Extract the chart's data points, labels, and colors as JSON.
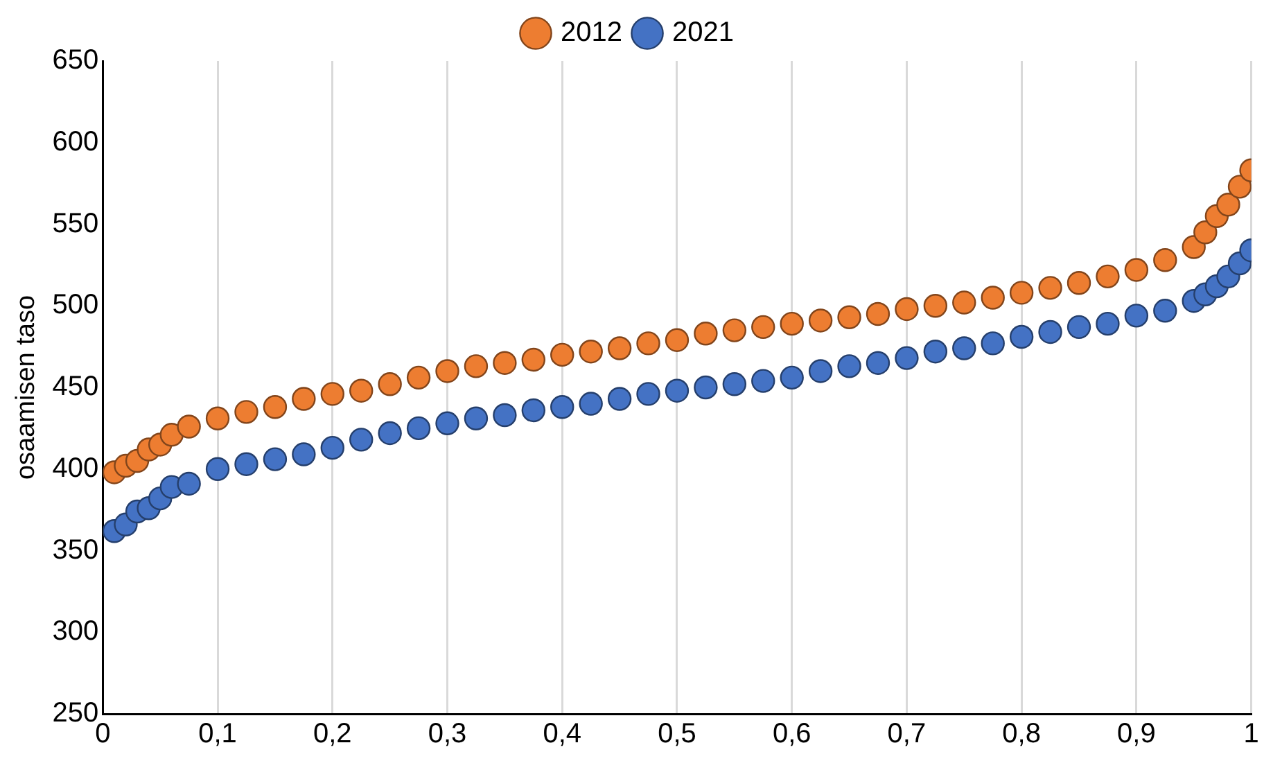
{
  "chart_data": {
    "type": "scatter",
    "ylabel": "osaamisen taso",
    "x": [
      0.01,
      0.02,
      0.03,
      0.04,
      0.05,
      0.06,
      0.075,
      0.1,
      0.125,
      0.15,
      0.175,
      0.2,
      0.225,
      0.25,
      0.275,
      0.3,
      0.325,
      0.35,
      0.375,
      0.4,
      0.425,
      0.45,
      0.475,
      0.5,
      0.525,
      0.55,
      0.575,
      0.6,
      0.625,
      0.65,
      0.675,
      0.7,
      0.725,
      0.75,
      0.775,
      0.8,
      0.825,
      0.85,
      0.875,
      0.9,
      0.925,
      0.95,
      0.96,
      0.97,
      0.98,
      0.99,
      1.0
    ],
    "series": [
      {
        "name": "2012",
        "color": "#ed7d31",
        "values": [
          398,
          402,
          405,
          412,
          415,
          421,
          426,
          431,
          435,
          438,
          443,
          446,
          448,
          452,
          456,
          460,
          463,
          465,
          467,
          470,
          472,
          474,
          477,
          479,
          483,
          485,
          487,
          489,
          491,
          493,
          495,
          498,
          500,
          502,
          505,
          508,
          511,
          514,
          518,
          522,
          528,
          536,
          545,
          555,
          562,
          573,
          583
        ]
      },
      {
        "name": "2021",
        "color": "#4472c4",
        "values": [
          362,
          366,
          374,
          376,
          382,
          389,
          391,
          400,
          403,
          406,
          409,
          413,
          418,
          422,
          425,
          428,
          431,
          433,
          436,
          438,
          440,
          443,
          446,
          448,
          450,
          452,
          454,
          456,
          460,
          463,
          465,
          468,
          472,
          474,
          477,
          481,
          484,
          487,
          489,
          494,
          497,
          503,
          507,
          512,
          518,
          526,
          534
        ]
      }
    ],
    "xlim": [
      0,
      1
    ],
    "xticks": [
      0,
      {
        "value": 0.1,
        "label": "0,1"
      },
      {
        "value": 0.2,
        "label": "0,2"
      },
      {
        "value": 0.3,
        "label": "0,3"
      },
      {
        "value": 0.4,
        "label": "0,4"
      },
      {
        "value": 0.5,
        "label": "0,5"
      },
      {
        "value": 0.6,
        "label": "0,6"
      },
      {
        "value": 0.7,
        "label": "0,7"
      },
      {
        "value": 0.8,
        "label": "0,8"
      },
      {
        "value": 0.9,
        "label": "0,9"
      },
      1
    ],
    "ylim": [
      250,
      650
    ],
    "yticks": [
      250,
      300,
      350,
      400,
      450,
      500,
      550,
      600,
      650
    ],
    "grid": "x",
    "legend": "top",
    "marker": "circle"
  }
}
